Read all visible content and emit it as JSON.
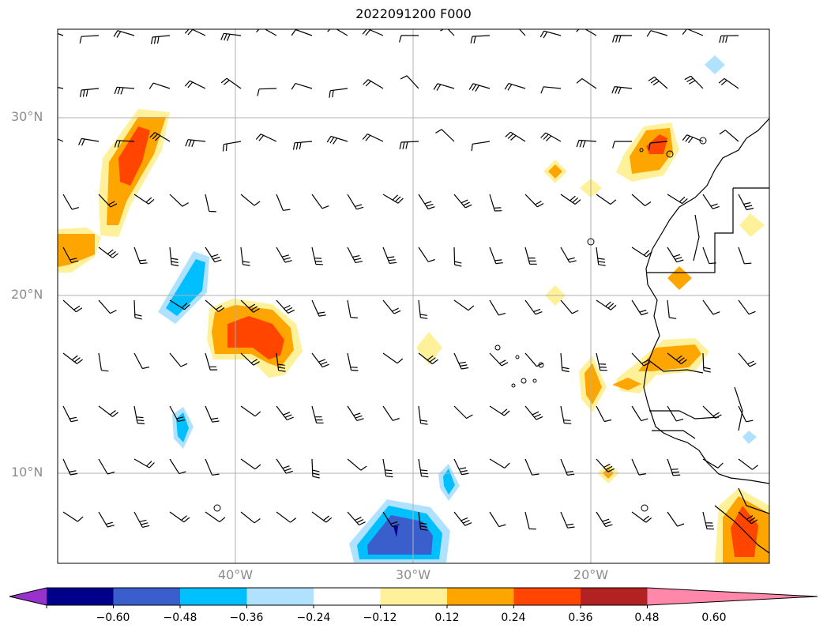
{
  "title": "2022091200 F000",
  "map": {
    "lat_labels": [
      "30°N",
      "20°N",
      "10°N"
    ],
    "lon_labels": [
      "40°W",
      "30°W",
      "20°W"
    ]
  },
  "colorbar": {
    "tick_labels": [
      "−0.60",
      "−0.48",
      "−0.36",
      "−0.24",
      "−0.12",
      "0.12",
      "0.24",
      "0.36",
      "0.48",
      "0.60"
    ],
    "colors": [
      "#9932cc",
      "#00008b",
      "#3a5fcd",
      "#00bfff",
      "#b0e2ff",
      "#ffffff",
      "#fff09a",
      "#ffa500",
      "#ff4500",
      "#b22222",
      "#ff88aa"
    ]
  }
}
